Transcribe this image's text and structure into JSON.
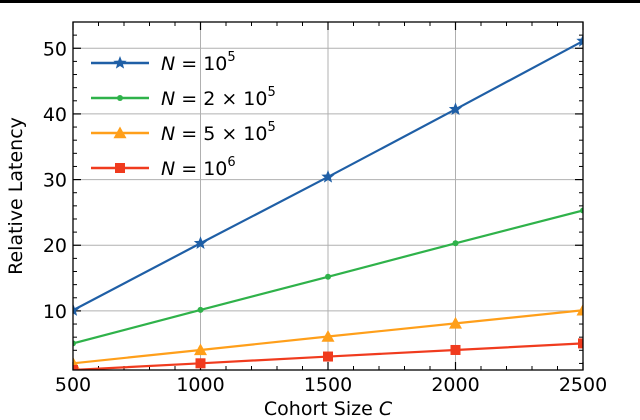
{
  "chart_data": {
    "type": "line",
    "title": "",
    "xlabel": "Cohort Size",
    "xlabel_var": "C",
    "ylabel": "Relative Latency",
    "xlim": [
      500,
      2500
    ],
    "ylim": [
      1,
      54
    ],
    "x_ticks": [
      500,
      1000,
      1500,
      2000,
      2500
    ],
    "y_ticks": [
      10,
      20,
      30,
      40,
      50
    ],
    "grid": true,
    "legend_position": "top-left",
    "x": [
      500,
      1000,
      1500,
      2000,
      2500
    ],
    "series": [
      {
        "name": "N = 10^5",
        "label_parts": [
          "N",
          " = 10",
          "5"
        ],
        "values": [
          10.1,
          20.3,
          30.4,
          40.7,
          51.1
        ],
        "color": "#1f5fa6",
        "marker": "star"
      },
      {
        "name": "N = 2 × 10^5",
        "label_parts": [
          "N",
          " = 2 × 10",
          "5"
        ],
        "values": [
          5.05,
          10.15,
          15.2,
          20.3,
          25.3
        ],
        "color": "#2fb24a",
        "marker": "point"
      },
      {
        "name": "N = 5 × 10^5",
        "label_parts": [
          "N",
          " = 5 × 10",
          "5"
        ],
        "values": [
          2.02,
          4.05,
          6.1,
          8.1,
          10.1
        ],
        "color": "#ff9f1a",
        "marker": "triangle"
      },
      {
        "name": "N = 10^6",
        "label_parts": [
          "N",
          " = 10",
          "6"
        ],
        "values": [
          1.0,
          2.02,
          3.05,
          4.05,
          5.05
        ],
        "color": "#f03b1e",
        "marker": "square"
      }
    ]
  }
}
